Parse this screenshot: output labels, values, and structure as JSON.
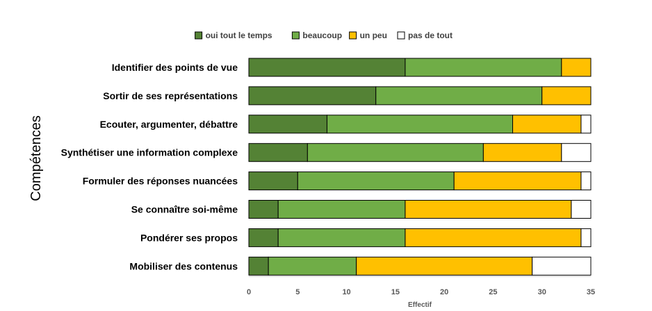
{
  "chart_data": {
    "type": "bar",
    "orientation": "horizontal",
    "stacked": true,
    "ylabel": "Compétences",
    "xlabel": "Effectif",
    "xlim": [
      0,
      35
    ],
    "xticks": [
      0,
      5,
      10,
      15,
      20,
      25,
      30,
      35
    ],
    "grid": false,
    "legend_position": "top",
    "categories": [
      "Identifier des points de vue",
      "Sortir de ses représentations",
      "Ecouter, argumenter, débattre",
      "Synthétiser une information complexe",
      "Formuler des réponses nuancées",
      "Se connaître soi-même",
      "Pondérer ses propos",
      "Mobiliser des contenus"
    ],
    "series": [
      {
        "name": "oui tout le temps",
        "color": "#548235",
        "values": [
          16,
          13,
          8,
          6,
          5,
          3,
          3,
          2
        ]
      },
      {
        "name": "beaucoup",
        "color": "#70AD47",
        "values": [
          16,
          17,
          19,
          18,
          16,
          13,
          13,
          9
        ]
      },
      {
        "name": "un peu",
        "color": "#FFC000",
        "values": [
          3,
          5,
          7,
          8,
          13,
          17,
          18,
          18
        ]
      },
      {
        "name": "pas de tout",
        "color": "#FFFFFF",
        "values": [
          0,
          0,
          1,
          3,
          1,
          2,
          1,
          6
        ]
      }
    ]
  }
}
